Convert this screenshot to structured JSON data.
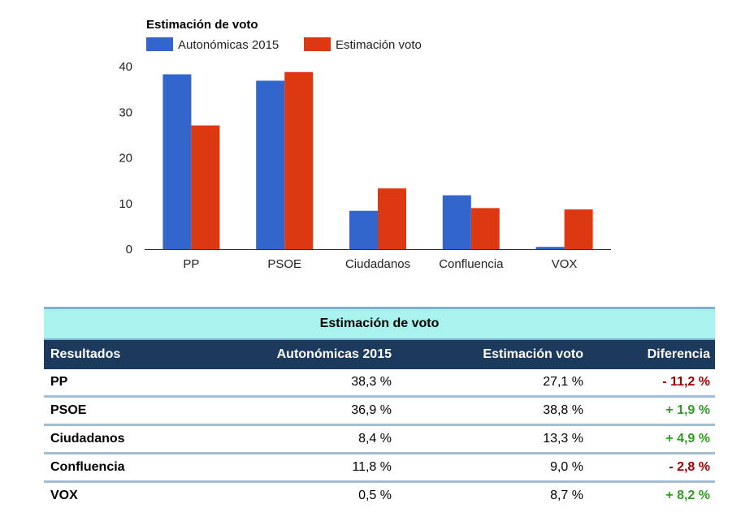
{
  "chart_data": {
    "type": "bar",
    "title": "Estimación de voto",
    "categories": [
      "PP",
      "PSOE",
      "Ciudadanos",
      "Confluencia",
      "VOX"
    ],
    "series": [
      {
        "name": "Autonómicas 2015",
        "color": "#3366cc",
        "values": [
          38.3,
          36.9,
          8.4,
          11.8,
          0.5
        ]
      },
      {
        "name": "Estimación voto",
        "color": "#dc3912",
        "values": [
          27.1,
          38.8,
          13.3,
          9.0,
          8.7
        ]
      }
    ],
    "yticks": [
      0,
      10,
      20,
      30,
      40
    ],
    "ylim": [
      0,
      40
    ],
    "legend": "top",
    "grid": false
  },
  "table": {
    "title": "Estimación de voto",
    "headers": [
      "Resultados",
      "Autonómicas 2015",
      "Estimación voto",
      "Diferencia"
    ],
    "rows": [
      {
        "party": "PP",
        "a2015": "38,3 %",
        "est": "27,1 %",
        "diff": "- 11,2 %",
        "sign": "neg"
      },
      {
        "party": "PSOE",
        "a2015": "36,9 %",
        "est": "38,8 %",
        "diff": "+ 1,9 %",
        "sign": "pos"
      },
      {
        "party": "Ciudadanos",
        "a2015": "8,4 %",
        "est": "13,3 %",
        "diff": "+ 4,9 %",
        "sign": "pos"
      },
      {
        "party": "Confluencia",
        "a2015": "11,8 %",
        "est": "9,0 %",
        "diff": "- 2,8 %",
        "sign": "neg"
      },
      {
        "party": "VOX",
        "a2015": "0,5 %",
        "est": "8,7 %",
        "diff": "+ 8,2 %",
        "sign": "pos"
      }
    ],
    "colors": {
      "positive": "#2e9e1f",
      "negative": "#a00000"
    }
  }
}
